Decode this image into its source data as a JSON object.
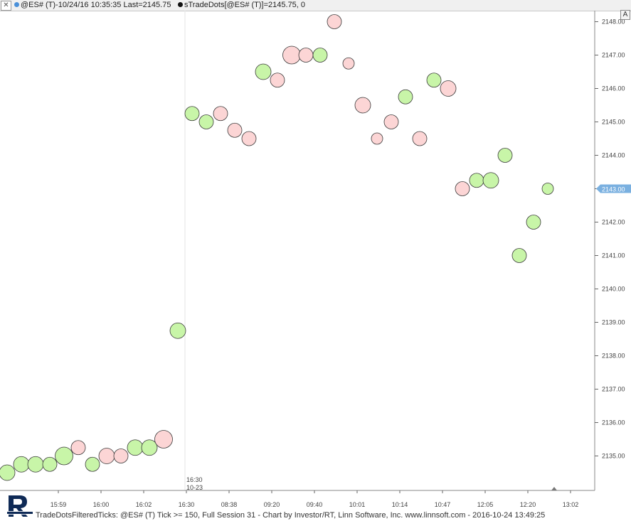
{
  "header": {
    "close_label": "✕",
    "symbol_title": "@ES# (T)-10/24/16 10:35:35 Last=2145.75",
    "study_title": "sTradeDots[@ES# (T)]=2145.75, 0",
    "autoscale_label": "A"
  },
  "footer": {
    "text": "TradeDotsFilteredTicks: @ES# (T) Tick >= 150, Full Session 31 - Chart by Investor/RT, Linn Software, Inc. www.linnsoft.com - 2016-10-24 13:49:25"
  },
  "colors": {
    "buy": "#c8f5a8",
    "sell": "#fcd5d5",
    "last_price_badge": "#7ab0e0",
    "session_line": "#e6e6e6"
  },
  "chart_data": {
    "type": "scatter",
    "y_range": [
      2134,
      2148.2
    ],
    "y_ticks": [
      {
        "value": 2148,
        "label": "2148.00"
      },
      {
        "value": 2147,
        "label": "2147.00"
      },
      {
        "value": 2146,
        "label": "2146.00"
      },
      {
        "value": 2145,
        "label": "2145.00"
      },
      {
        "value": 2144,
        "label": "2144.00"
      },
      {
        "value": 2143,
        "label": "2143.00"
      },
      {
        "value": 2142,
        "label": "2142.00"
      },
      {
        "value": 2141,
        "label": "2141.00"
      },
      {
        "value": 2140,
        "label": "2140.00"
      },
      {
        "value": 2139,
        "label": "2139.00"
      },
      {
        "value": 2138,
        "label": "2138.00"
      },
      {
        "value": 2137,
        "label": "2137.00"
      },
      {
        "value": 2136,
        "label": "2136.00"
      },
      {
        "value": 2135,
        "label": "2135.00"
      }
    ],
    "x_ticks": [
      {
        "index": 4,
        "label": "15:59"
      },
      {
        "index": 7,
        "label": "16:00"
      },
      {
        "index": 10,
        "label": "16:02"
      },
      {
        "index": 13,
        "label": "16:30"
      },
      {
        "index": 16,
        "label": "08:38"
      },
      {
        "index": 19,
        "label": "09:20"
      },
      {
        "index": 22,
        "label": "09:40"
      },
      {
        "index": 25,
        "label": "10:01"
      },
      {
        "index": 28,
        "label": "10:14"
      },
      {
        "index": 31,
        "label": "10:47"
      },
      {
        "index": 34,
        "label": "12:05"
      },
      {
        "index": 37,
        "label": "12:20"
      },
      {
        "index": 40,
        "label": "13:02"
      }
    ],
    "session_break": {
      "index": 12.5,
      "time_label": "16:30",
      "date_label": "10-23"
    },
    "last_price": {
      "value": 2143,
      "label": "2143.00"
    },
    "points": [
      {
        "i": 0,
        "price": 2134.5,
        "side": "buy",
        "size": 2
      },
      {
        "i": 1,
        "price": 2134.75,
        "side": "buy",
        "size": 2
      },
      {
        "i": 2,
        "price": 2134.75,
        "side": "buy",
        "size": 2
      },
      {
        "i": 3,
        "price": 2134.75,
        "side": "buy",
        "size": 1
      },
      {
        "i": 4,
        "price": 2135,
        "side": "buy",
        "size": 3
      },
      {
        "i": 5,
        "price": 2135.25,
        "side": "sell",
        "size": 1
      },
      {
        "i": 6,
        "price": 2134.75,
        "side": "buy",
        "size": 1
      },
      {
        "i": 7,
        "price": 2135,
        "side": "sell",
        "size": 2
      },
      {
        "i": 8,
        "price": 2135,
        "side": "sell",
        "size": 1
      },
      {
        "i": 9,
        "price": 2135.25,
        "side": "buy",
        "size": 2
      },
      {
        "i": 10,
        "price": 2135.25,
        "side": "buy",
        "size": 2
      },
      {
        "i": 11,
        "price": 2135.5,
        "side": "sell",
        "size": 3
      },
      {
        "i": 12,
        "price": 2138.75,
        "side": "buy",
        "size": 2
      },
      {
        "i": 13,
        "price": 2145.25,
        "side": "buy",
        "size": 1
      },
      {
        "i": 14,
        "price": 2145,
        "side": "buy",
        "size": 1
      },
      {
        "i": 15,
        "price": 2145.25,
        "side": "sell",
        "size": 1
      },
      {
        "i": 16,
        "price": 2144.75,
        "side": "sell",
        "size": 1
      },
      {
        "i": 17,
        "price": 2144.5,
        "side": "sell",
        "size": 1
      },
      {
        "i": 18,
        "price": 2146.5,
        "side": "buy",
        "size": 2
      },
      {
        "i": 19,
        "price": 2146.25,
        "side": "sell",
        "size": 1
      },
      {
        "i": 20,
        "price": 2147,
        "side": "sell",
        "size": 3
      },
      {
        "i": 21,
        "price": 2147,
        "side": "sell",
        "size": 1
      },
      {
        "i": 22,
        "price": 2147,
        "side": "buy",
        "size": 1
      },
      {
        "i": 23,
        "price": 2148,
        "side": "sell",
        "size": 1
      },
      {
        "i": 24,
        "price": 2146.75,
        "side": "sell",
        "size": 0
      },
      {
        "i": 25,
        "price": 2145.5,
        "side": "sell",
        "size": 2
      },
      {
        "i": 26,
        "price": 2144.5,
        "side": "sell",
        "size": 0
      },
      {
        "i": 27,
        "price": 2145,
        "side": "sell",
        "size": 1
      },
      {
        "i": 28,
        "price": 2145.75,
        "side": "buy",
        "size": 1
      },
      {
        "i": 29,
        "price": 2144.5,
        "side": "sell",
        "size": 1
      },
      {
        "i": 30,
        "price": 2146.25,
        "side": "buy",
        "size": 1
      },
      {
        "i": 31,
        "price": 2146,
        "side": "sell",
        "size": 2
      },
      {
        "i": 32,
        "price": 2143,
        "side": "sell",
        "size": 1
      },
      {
        "i": 33,
        "price": 2143.25,
        "side": "buy",
        "size": 1
      },
      {
        "i": 34,
        "price": 2143.25,
        "side": "buy",
        "size": 2
      },
      {
        "i": 35,
        "price": 2144,
        "side": "buy",
        "size": 1
      },
      {
        "i": 36,
        "price": 2141,
        "side": "buy",
        "size": 1
      },
      {
        "i": 37,
        "price": 2142,
        "side": "buy",
        "size": 1
      },
      {
        "i": 38,
        "price": 2143,
        "side": "buy",
        "size": 0
      }
    ]
  }
}
